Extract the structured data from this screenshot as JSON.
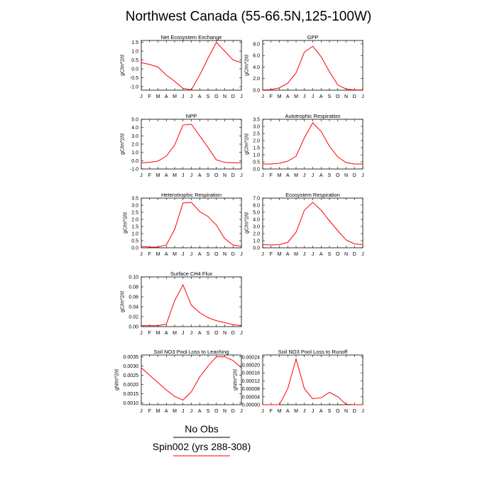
{
  "figure_title": "Northwest Canada (55-66.5N,125-100W)",
  "months": [
    "J",
    "F",
    "M",
    "A",
    "M",
    "J",
    "J",
    "A",
    "S",
    "O",
    "N",
    "D",
    "J"
  ],
  "legend": [
    {
      "label": "No Obs",
      "color": "#000000"
    },
    {
      "label": "Spin002 (yrs 288-308)",
      "color": "#ff0000"
    }
  ],
  "line_color": "#ff0000",
  "chart_data": [
    {
      "type": "line",
      "title": "Net Ecosystem Exchange",
      "ylabel": "gC/m^2/d",
      "ylim": [
        -1.2,
        1.6
      ],
      "yticks": [
        "1.5",
        "1.0",
        "0.5",
        "0.0",
        "-0.5",
        "-1.0"
      ],
      "ytick_values": [
        1.5,
        1.0,
        0.5,
        0.0,
        -0.5,
        -1.0
      ],
      "values": [
        0.35,
        0.25,
        0.1,
        -0.35,
        -0.7,
        -1.1,
        -1.18,
        -0.35,
        0.6,
        1.5,
        1.0,
        0.5,
        0.35
      ]
    },
    {
      "type": "line",
      "title": "GPP",
      "ylabel": "gC/m^2/d",
      "ylim": [
        0,
        8.6
      ],
      "yticks": [
        "8.0",
        "6.0",
        "4.0",
        "2.0",
        "0.0"
      ],
      "ytick_values": [
        8,
        6,
        4,
        2,
        0
      ],
      "values": [
        0.05,
        0.1,
        0.4,
        1.2,
        3.0,
        6.6,
        7.6,
        5.8,
        3.2,
        0.9,
        0.2,
        0.05,
        0.05
      ]
    },
    {
      "type": "line",
      "title": "NPP",
      "ylabel": "gC/m^2/d",
      "ylim": [
        -1.0,
        5.0
      ],
      "yticks": [
        "5.0",
        "4.0",
        "3.0",
        "2.0",
        "1.0",
        "0.0",
        "-1.0"
      ],
      "ytick_values": [
        5,
        4,
        3,
        2,
        1,
        0,
        -1
      ],
      "values": [
        -0.25,
        -0.2,
        -0.05,
        0.55,
        1.9,
        4.3,
        4.4,
        3.0,
        1.6,
        0.1,
        -0.2,
        -0.25,
        -0.25
      ]
    },
    {
      "type": "line",
      "title": "Autotrophic Respiration",
      "ylabel": "gC/m^2/d",
      "ylim": [
        0,
        3.5
      ],
      "yticks": [
        "3.5",
        "3.0",
        "2.5",
        "2.0",
        "1.5",
        "1.0",
        "0.5",
        "0.0"
      ],
      "ytick_values": [
        3.5,
        3.0,
        2.5,
        2.0,
        1.5,
        1.0,
        0.5,
        0.0
      ],
      "values": [
        0.35,
        0.35,
        0.4,
        0.55,
        0.9,
        2.2,
        3.25,
        2.65,
        1.6,
        0.85,
        0.45,
        0.35,
        0.35
      ]
    },
    {
      "type": "line",
      "title": "Heterotrophic Respiration",
      "ylabel": "gC/m^2/d",
      "ylim": [
        0,
        3.5
      ],
      "yticks": [
        "3.5",
        "3.0",
        "2.5",
        "2.0",
        "1.5",
        "1.0",
        "0.5",
        "0.0"
      ],
      "ytick_values": [
        3.5,
        3.0,
        2.5,
        2.0,
        1.5,
        1.0,
        0.5,
        0.0
      ],
      "values": [
        0.1,
        0.05,
        0.05,
        0.2,
        1.3,
        3.15,
        3.2,
        2.55,
        2.2,
        1.6,
        0.65,
        0.2,
        0.1
      ]
    },
    {
      "type": "line",
      "title": "Ecosystem Respiration",
      "ylabel": "gC/m^2/d",
      "ylim": [
        0,
        7.0
      ],
      "yticks": [
        "7.0",
        "6.0",
        "5.0",
        "4.0",
        "3.0",
        "2.0",
        "1.0",
        "0.0"
      ],
      "ytick_values": [
        7,
        6,
        5,
        4,
        3,
        2,
        1,
        0
      ],
      "values": [
        0.45,
        0.4,
        0.45,
        0.75,
        2.2,
        5.3,
        6.4,
        5.3,
        3.8,
        2.4,
        1.1,
        0.55,
        0.45
      ]
    },
    {
      "type": "line",
      "title": "Surface CH4 Flux",
      "ylabel": "gC/m^2/d",
      "ylim": [
        0,
        0.1
      ],
      "yticks": [
        "0.10",
        "0.08",
        "0.06",
        "0.04",
        "0.02",
        "0.00"
      ],
      "ytick_values": [
        0.1,
        0.08,
        0.06,
        0.04,
        0.02,
        0.0
      ],
      "values": [
        0.002,
        0.002,
        0.002,
        0.005,
        0.052,
        0.084,
        0.043,
        0.028,
        0.018,
        0.012,
        0.008,
        0.004,
        0.002
      ]
    },
    null,
    {
      "type": "line",
      "title": "Soil NO3 Pool Loss to Leaching",
      "ylabel": "gN/m^2/d",
      "ylim": [
        0.0009,
        0.0036
      ],
      "yticks": [
        "0.0035",
        "0.0030",
        "0.0025",
        "0.0020",
        "0.0015",
        "0.0010"
      ],
      "ytick_values": [
        0.0035,
        0.003,
        0.0025,
        0.002,
        0.0015,
        0.001
      ],
      "values": [
        0.0029,
        0.0025,
        0.0021,
        0.0017,
        0.00135,
        0.00115,
        0.0016,
        0.0024,
        0.003,
        0.0035,
        0.0035,
        0.0033,
        0.0029
      ]
    },
    {
      "type": "line",
      "title": "Soil NO3 Pool Loss to Runoff",
      "ylabel": "gN/m^2/d",
      "ylim": [
        0,
        0.00025
      ],
      "yticks": [
        "0.00024",
        "0.00020",
        "0.00016",
        "0.00012",
        "0.00008",
        "0.00004",
        "0.00000"
      ],
      "ytick_values": [
        0.00024,
        0.0002,
        0.00016,
        0.00012,
        8e-05,
        4e-05,
        0.0
      ],
      "values": [
        0,
        0,
        0,
        8e-05,
        0.00023,
        8e-05,
        3e-05,
        3.5e-05,
        6.2e-05,
        4e-05,
        2e-06,
        0,
        0
      ]
    }
  ]
}
